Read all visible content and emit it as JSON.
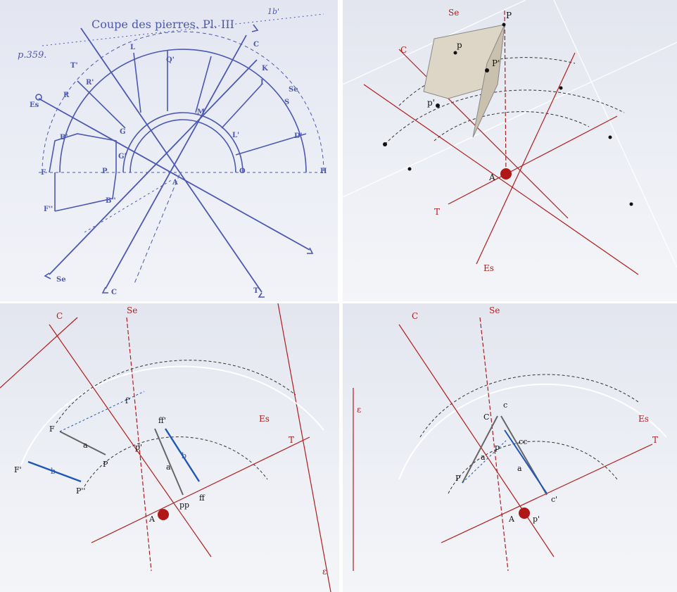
{
  "panel_drawing": {
    "title": "Coupe des pierres. Pl. III",
    "page_ref": "p.359.",
    "corner_mark": "1b'",
    "labels": {
      "T_top": "T'",
      "L": "L",
      "Q": "Q'",
      "C_top": "C",
      "Se_top": "Se",
      "Es": "Es",
      "R": "R",
      "R2": "R'",
      "I": "I",
      "S": "S",
      "B": "B'",
      "G": "G",
      "M": "M",
      "K": "K",
      "L2": "L'",
      "D": "D'",
      "G2": "G'",
      "F": "F",
      "P": "P",
      "A": "A",
      "O": "O",
      "H": "H",
      "B2": "B''",
      "F2": "F''",
      "Se_bot": "Se",
      "C_bot": "C",
      "T_bot": "T"
    }
  },
  "panel_3d_top": {
    "labels": {
      "Se": "Se",
      "C": "C",
      "P": "P",
      "p": "p",
      "P2": "P'",
      "p2": "p'",
      "A": "A",
      "T": "T",
      "Es": "Es"
    }
  },
  "panel_3d_left": {
    "labels": {
      "C": "C",
      "Se": "Se",
      "Es": "Es",
      "T": "T",
      "F": "F",
      "F2": "F'",
      "P": "P",
      "P3": "P''",
      "f": "f'",
      "ff2": "ff'",
      "p2": "p'",
      "a": "a",
      "a2": "a",
      "b": "b",
      "b2": "b",
      "ff": "ff",
      "pp": "pp",
      "A": "A",
      "eps": "ε"
    }
  },
  "panel_3d_right": {
    "labels": {
      "C": "C",
      "Se": "Se",
      "Es": "Es",
      "T": "T",
      "eps": "ε",
      "C2": "C",
      "c": "c",
      "p": "p",
      "cc": "cc",
      "P": "P",
      "a": "a",
      "a2": "a",
      "A": "A",
      "p2": "p'",
      "c2": "c'"
    }
  },
  "colors": {
    "ink": "#4b58b4",
    "red_axis": "#b41c1c",
    "blue_edge": "#1e56b8"
  }
}
